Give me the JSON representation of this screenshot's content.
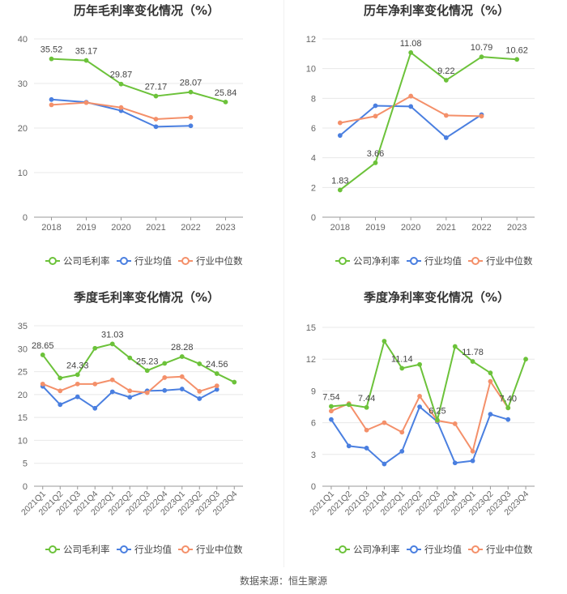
{
  "source_text": "数据来源：恒生聚源",
  "colors": {
    "company": "#6cc23a",
    "industry_avg": "#4a7fe0",
    "industry_median": "#f4906a",
    "grid": "#e8e8e8",
    "axis_text": "#666666",
    "label_text": "#444444"
  },
  "chart_data": [
    {
      "type": "line",
      "title": "历年毛利率变化情况（%）",
      "categories": [
        "2018",
        "2019",
        "2020",
        "2021",
        "2022",
        "2023"
      ],
      "ylim": [
        0,
        40
      ],
      "yticks": [
        0,
        10,
        20,
        30,
        40
      ],
      "legend_position": "bottom",
      "series": [
        {
          "name": "公司毛利率",
          "key": "company",
          "values": [
            35.52,
            35.17,
            29.87,
            27.17,
            28.07,
            25.84
          ]
        },
        {
          "name": "行业均值",
          "key": "industry_avg",
          "values": [
            26.4,
            25.8,
            23.9,
            20.3,
            20.5,
            null
          ]
        },
        {
          "name": "行业中位数",
          "key": "industry_median",
          "values": [
            25.2,
            25.7,
            24.6,
            22.0,
            22.4,
            null
          ]
        }
      ],
      "data_labels": [
        {
          "index": 0,
          "text": "35.52"
        },
        {
          "index": 1,
          "text": "35.17"
        },
        {
          "index": 2,
          "text": "29.87"
        },
        {
          "index": 3,
          "text": "27.17"
        },
        {
          "index": 4,
          "text": "28.07"
        },
        {
          "index": 5,
          "text": "25.84"
        }
      ],
      "rotate_x": false
    },
    {
      "type": "line",
      "title": "历年净利率变化情况（%）",
      "categories": [
        "2018",
        "2019",
        "2020",
        "2021",
        "2022",
        "2023"
      ],
      "ylim": [
        0,
        12
      ],
      "yticks": [
        0,
        2,
        4,
        6,
        8,
        10,
        12
      ],
      "legend_position": "bottom",
      "series": [
        {
          "name": "公司净利率",
          "key": "company",
          "values": [
            1.83,
            3.66,
            11.08,
            9.22,
            10.79,
            10.62
          ]
        },
        {
          "name": "行业均值",
          "key": "industry_avg",
          "values": [
            5.5,
            7.5,
            7.45,
            5.35,
            6.9,
            null
          ]
        },
        {
          "name": "行业中位数",
          "key": "industry_median",
          "values": [
            6.35,
            6.8,
            8.15,
            6.85,
            6.8,
            null
          ]
        }
      ],
      "data_labels": [
        {
          "index": 0,
          "text": "1.83"
        },
        {
          "index": 1,
          "text": "3.66"
        },
        {
          "index": 2,
          "text": "11.08"
        },
        {
          "index": 3,
          "text": "9.22"
        },
        {
          "index": 4,
          "text": "10.79"
        },
        {
          "index": 5,
          "text": "10.62"
        }
      ],
      "rotate_x": false
    },
    {
      "type": "line",
      "title": "季度毛利率变化情况（%）",
      "categories": [
        "2021Q1",
        "2021Q2",
        "2021Q3",
        "2021Q4",
        "2022Q1",
        "2022Q2",
        "2022Q3",
        "2022Q4",
        "2023Q1",
        "2023Q2",
        "2023Q3",
        "2023Q4"
      ],
      "ylim": [
        0,
        35
      ],
      "yticks": [
        0,
        5,
        10,
        15,
        20,
        25,
        30,
        35
      ],
      "legend_position": "bottom",
      "series": [
        {
          "name": "公司毛利率",
          "key": "company",
          "values": [
            28.65,
            23.6,
            24.33,
            30.1,
            31.03,
            28.0,
            25.23,
            26.8,
            28.28,
            26.7,
            24.56,
            22.7
          ]
        },
        {
          "name": "行业均值",
          "key": "industry_avg",
          "values": [
            21.8,
            17.8,
            19.5,
            17.0,
            20.6,
            19.4,
            20.8,
            20.9,
            21.2,
            19.1,
            21.1,
            null
          ]
        },
        {
          "name": "行业中位数",
          "key": "industry_median",
          "values": [
            22.3,
            20.8,
            22.3,
            22.3,
            23.2,
            20.8,
            20.4,
            23.7,
            23.9,
            20.7,
            21.9,
            null
          ]
        }
      ],
      "data_labels": [
        {
          "index": 0,
          "text": "28.65"
        },
        {
          "index": 2,
          "text": "24.33"
        },
        {
          "index": 4,
          "text": "31.03"
        },
        {
          "index": 6,
          "text": "25.23"
        },
        {
          "index": 8,
          "text": "28.28"
        },
        {
          "index": 10,
          "text": "24.56"
        }
      ],
      "rotate_x": true
    },
    {
      "type": "line",
      "title": "季度净利率变化情况（%）",
      "categories": [
        "2021Q1",
        "2021Q2",
        "2021Q3",
        "2021Q4",
        "2022Q1",
        "2022Q2",
        "2022Q3",
        "2022Q4",
        "2023Q1",
        "2023Q2",
        "2023Q3",
        "2023Q4"
      ],
      "ylim": [
        0,
        15
      ],
      "yticks": [
        0,
        3,
        6,
        9,
        12,
        15
      ],
      "legend_position": "bottom",
      "series": [
        {
          "name": "公司净利率",
          "key": "company",
          "values": [
            7.54,
            7.7,
            7.44,
            13.7,
            11.14,
            11.5,
            6.25,
            13.2,
            11.78,
            10.7,
            7.4,
            12.0
          ]
        },
        {
          "name": "行业均值",
          "key": "industry_avg",
          "values": [
            6.3,
            3.8,
            3.6,
            2.1,
            3.3,
            7.5,
            6.1,
            2.2,
            2.4,
            6.8,
            6.3,
            null
          ]
        },
        {
          "name": "行业中位数",
          "key": "industry_median",
          "values": [
            7.1,
            7.8,
            5.3,
            6.0,
            5.1,
            8.5,
            6.2,
            5.9,
            3.3,
            9.9,
            7.4,
            null
          ]
        }
      ],
      "data_labels": [
        {
          "index": 0,
          "text": "7.54"
        },
        {
          "index": 2,
          "text": "7.44"
        },
        {
          "index": 4,
          "text": "11.14"
        },
        {
          "index": 6,
          "text": "6.25"
        },
        {
          "index": 8,
          "text": "11.78"
        },
        {
          "index": 10,
          "text": "7.40"
        }
      ],
      "rotate_x": true
    }
  ]
}
